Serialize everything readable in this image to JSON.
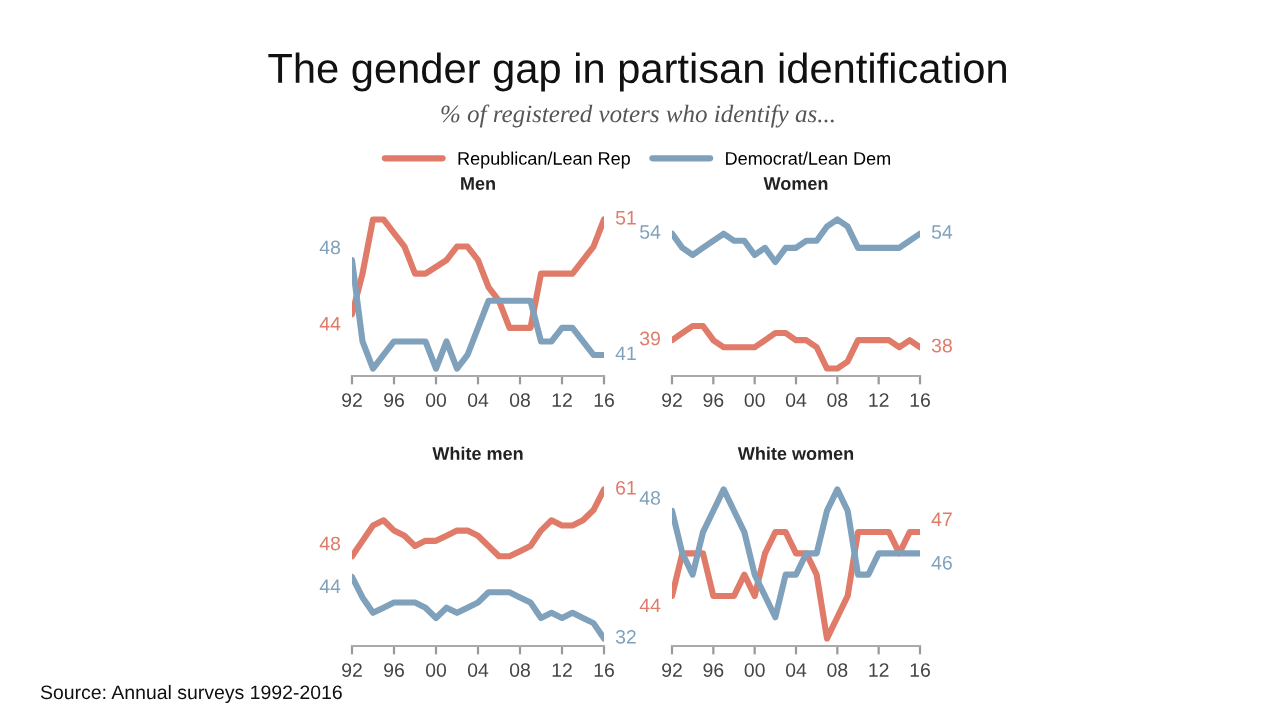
{
  "chart_data": [
    {
      "type": "other",
      "title": "The gender gap in partisan identification",
      "subtitle": "% of registered voters who identify as...",
      "annotations": [
        "Source: Annual surveys 1992-2016"
      ]
    },
    {
      "type": "line",
      "title": "Men",
      "x": [
        1992,
        1993,
        1994,
        1995,
        1996,
        1997,
        1998,
        1999,
        2000,
        2001,
        2002,
        2003,
        2004,
        2005,
        2006,
        2007,
        2008,
        2009,
        2010,
        2011,
        2012,
        2013,
        2014,
        2015,
        2016
      ],
      "xlim": [
        1992,
        2016
      ],
      "tick_labels": "x",
      "grid": false,
      "legend": "top",
      "xticks": [
        {
          "value": 1992,
          "label": "92"
        },
        {
          "value": 1996,
          "label": "96"
        },
        {
          "value": 2000,
          "label": "00"
        },
        {
          "value": 2004,
          "label": "04"
        },
        {
          "value": 2008,
          "label": "08"
        },
        {
          "value": 2012,
          "label": "12"
        },
        {
          "value": 2016,
          "label": "16"
        }
      ],
      "series": [
        {
          "name": "Republican/Lean Rep",
          "color": "#e07b6a",
          "values": [
            44,
            47,
            51,
            51,
            50,
            49,
            47,
            47,
            47.5,
            48,
            49,
            49,
            48,
            46,
            45,
            43,
            43,
            43,
            47,
            47,
            47,
            47,
            48,
            49,
            51
          ],
          "value_labels": [
            "44",
            null,
            null,
            null,
            null,
            null,
            null,
            null,
            null,
            null,
            null,
            null,
            null,
            null,
            null,
            null,
            null,
            null,
            null,
            null,
            null,
            null,
            null,
            null,
            "51"
          ]
        },
        {
          "name": "Democrat/Lean Dem",
          "color": "#7fa1bb",
          "values": [
            48,
            42,
            40,
            41,
            42,
            42,
            42,
            42,
            40,
            42,
            40,
            41,
            43,
            45,
            45,
            45,
            45,
            45,
            42,
            42,
            43,
            43,
            42,
            41,
            41
          ],
          "value_labels": [
            "48",
            null,
            null,
            null,
            null,
            null,
            null,
            null,
            null,
            null,
            null,
            null,
            null,
            null,
            null,
            null,
            null,
            null,
            null,
            null,
            null,
            null,
            null,
            null,
            "41"
          ]
        }
      ]
    },
    {
      "type": "line",
      "title": "Women",
      "x": [
        1992,
        1993,
        1994,
        1995,
        1996,
        1997,
        1998,
        1999,
        2000,
        2001,
        2002,
        2003,
        2004,
        2005,
        2006,
        2007,
        2008,
        2009,
        2010,
        2011,
        2012,
        2013,
        2014,
        2015,
        2016
      ],
      "xlim": [
        1992,
        2016
      ],
      "tick_labels": "x",
      "grid": false,
      "xticks": [
        {
          "value": 1992,
          "label": "92"
        },
        {
          "value": 1996,
          "label": "96"
        },
        {
          "value": 2000,
          "label": "00"
        },
        {
          "value": 2004,
          "label": "04"
        },
        {
          "value": 2008,
          "label": "08"
        },
        {
          "value": 2012,
          "label": "12"
        },
        {
          "value": 2016,
          "label": "16"
        }
      ],
      "series": [
        {
          "color": "#e07b6a",
          "values": [
            39,
            40,
            41,
            41,
            39,
            38,
            38,
            38,
            38,
            39,
            40,
            40,
            39,
            39,
            38,
            35,
            35,
            36,
            39,
            39,
            39,
            39,
            38,
            39,
            38
          ],
          "value_labels": [
            "39",
            null,
            null,
            null,
            null,
            null,
            null,
            null,
            null,
            null,
            null,
            null,
            null,
            null,
            null,
            null,
            null,
            null,
            null,
            null,
            null,
            null,
            null,
            null,
            "38"
          ]
        },
        {
          "color": "#7fa1bb",
          "values": [
            54,
            52,
            51,
            52,
            53,
            54,
            53,
            53,
            51,
            52,
            50,
            52,
            52,
            53,
            53,
            55,
            56,
            55,
            52,
            52,
            52,
            52,
            52,
            53,
            54
          ],
          "value_labels": [
            "54",
            null,
            null,
            null,
            null,
            null,
            null,
            null,
            null,
            null,
            null,
            null,
            null,
            null,
            null,
            null,
            null,
            null,
            null,
            null,
            null,
            null,
            null,
            null,
            "54"
          ]
        }
      ]
    },
    {
      "type": "line",
      "title": "White men",
      "x": [
        1992,
        1993,
        1994,
        1995,
        1996,
        1997,
        1998,
        1999,
        2000,
        2001,
        2002,
        2003,
        2004,
        2005,
        2006,
        2007,
        2008,
        2009,
        2010,
        2011,
        2012,
        2013,
        2014,
        2015,
        2016
      ],
      "xlim": [
        1992,
        2016
      ],
      "tick_labels": "x",
      "grid": false,
      "xticks": [
        {
          "value": 1992,
          "label": "92"
        },
        {
          "value": 1996,
          "label": "96"
        },
        {
          "value": 2000,
          "label": "00"
        },
        {
          "value": 2004,
          "label": "04"
        },
        {
          "value": 2008,
          "label": "08"
        },
        {
          "value": 2012,
          "label": "12"
        },
        {
          "value": 2016,
          "label": "16"
        }
      ],
      "series": [
        {
          "color": "#e07b6a",
          "values": [
            48,
            51,
            54,
            55,
            53,
            52,
            50,
            51,
            51,
            52,
            53,
            53,
            52,
            50,
            48,
            48,
            49,
            50,
            53,
            55,
            54,
            54,
            55,
            57,
            61
          ],
          "value_labels": [
            "48",
            null,
            null,
            null,
            null,
            null,
            null,
            null,
            null,
            null,
            null,
            null,
            null,
            null,
            null,
            null,
            null,
            null,
            null,
            null,
            null,
            null,
            null,
            null,
            "61"
          ]
        },
        {
          "color": "#7fa1bb",
          "values": [
            44,
            40,
            37,
            38,
            39,
            39,
            39,
            38,
            36,
            38,
            37,
            38,
            39,
            41,
            41,
            41,
            40,
            39,
            36,
            37,
            36,
            37,
            36,
            35,
            32
          ],
          "value_labels": [
            "44",
            null,
            null,
            null,
            null,
            null,
            null,
            null,
            null,
            null,
            null,
            null,
            null,
            null,
            null,
            null,
            null,
            null,
            null,
            null,
            null,
            null,
            null,
            null,
            "32"
          ]
        }
      ]
    },
    {
      "type": "line",
      "title": "White women",
      "x": [
        1992,
        1993,
        1994,
        1995,
        1996,
        1997,
        1998,
        1999,
        2000,
        2001,
        2002,
        2003,
        2004,
        2005,
        2006,
        2007,
        2008,
        2009,
        2010,
        2011,
        2012,
        2013,
        2014,
        2015,
        2016
      ],
      "xlim": [
        1992,
        2016
      ],
      "tick_labels": "x",
      "grid": false,
      "xticks": [
        {
          "value": 1992,
          "label": "92"
        },
        {
          "value": 1996,
          "label": "96"
        },
        {
          "value": 2000,
          "label": "00"
        },
        {
          "value": 2004,
          "label": "04"
        },
        {
          "value": 2008,
          "label": "08"
        },
        {
          "value": 2012,
          "label": "12"
        },
        {
          "value": 2016,
          "label": "16"
        }
      ],
      "series": [
        {
          "color": "#e07b6a",
          "values": [
            44,
            46,
            46,
            46,
            44,
            44,
            44,
            45,
            44,
            46,
            47,
            47,
            46,
            46,
            45,
            42,
            43,
            44,
            47,
            47,
            47,
            47,
            46,
            47,
            47
          ],
          "value_labels": [
            "44",
            null,
            null,
            null,
            null,
            null,
            null,
            null,
            null,
            null,
            null,
            null,
            null,
            null,
            null,
            null,
            null,
            null,
            null,
            null,
            null,
            null,
            null,
            null,
            "47"
          ]
        },
        {
          "color": "#7fa1bb",
          "values": [
            48,
            46,
            45,
            47,
            48,
            49,
            48,
            47,
            45,
            44,
            43,
            45,
            45,
            46,
            46,
            48,
            49,
            48,
            45,
            45,
            46,
            46,
            46,
            46,
            46
          ],
          "value_labels": [
            "48",
            null,
            null,
            null,
            null,
            null,
            null,
            null,
            null,
            null,
            null,
            null,
            null,
            null,
            null,
            null,
            null,
            null,
            null,
            null,
            null,
            null,
            null,
            null,
            "46"
          ]
        }
      ]
    }
  ]
}
